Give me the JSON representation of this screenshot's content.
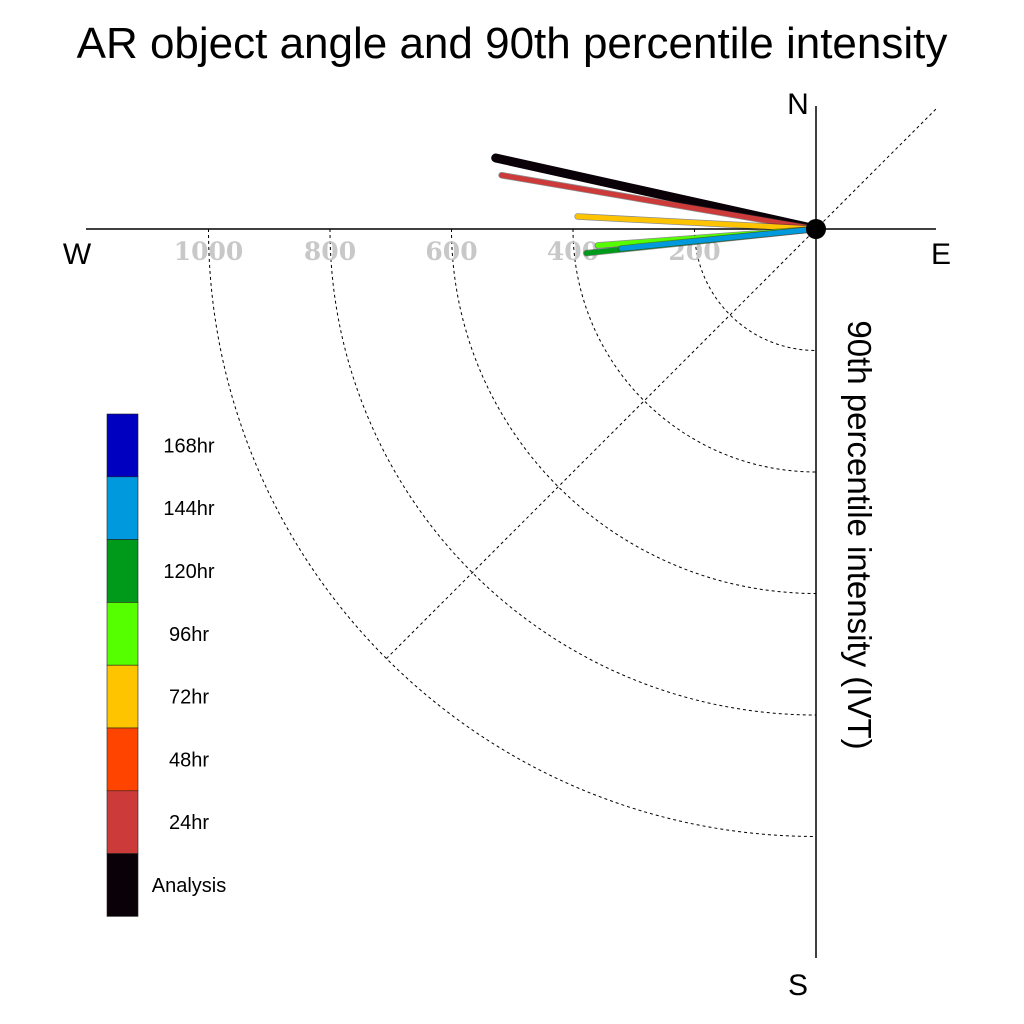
{
  "chart_data": {
    "type": "polar-vector",
    "title": "AR object angle and 90th percentile intensity",
    "radial_label": "90th percentile intensity (IVT)",
    "compass": {
      "north": "N",
      "south": "S",
      "east": "E",
      "west": "W"
    },
    "radial_ticks": [
      200,
      400,
      600,
      800,
      1000
    ],
    "radial_range": [
      0,
      1200
    ],
    "legend_placement": "left",
    "legend": [
      {
        "label": "168hr",
        "color": "#0000c0"
      },
      {
        "label": "144hr",
        "color": "#0099dd"
      },
      {
        "label": "120hr",
        "color": "#009a1a"
      },
      {
        "label": "96hr",
        "color": "#55ff00"
      },
      {
        "label": "72hr",
        "color": "#ffc400"
      },
      {
        "label": "48hr",
        "color": "#ff4400"
      },
      {
        "label": "24hr",
        "color": "#cc3a3a"
      },
      {
        "label": "Analysis",
        "color": "#0a0008"
      }
    ],
    "series": [
      {
        "name": "Analysis",
        "color": "#0a0008",
        "angle_deg": 167.5,
        "intensity": 540,
        "width": 9
      },
      {
        "name": "24hr",
        "color": "#cc3a3a",
        "angle_deg": 170.3,
        "intensity": 525,
        "width": 5
      },
      {
        "name": "72hr",
        "color": "#ffc400",
        "angle_deg": 177.0,
        "intensity": 393,
        "width": 5
      },
      {
        "name": "96hr",
        "color": "#55ff00",
        "angle_deg": 184.3,
        "intensity": 360,
        "width": 5
      },
      {
        "name": "120hr",
        "color": "#009a1a",
        "angle_deg": 186.0,
        "intensity": 380,
        "width": 5
      },
      {
        "name": "144hr",
        "color": "#0099dd",
        "angle_deg": 185.7,
        "intensity": 322,
        "width": 5
      }
    ]
  }
}
